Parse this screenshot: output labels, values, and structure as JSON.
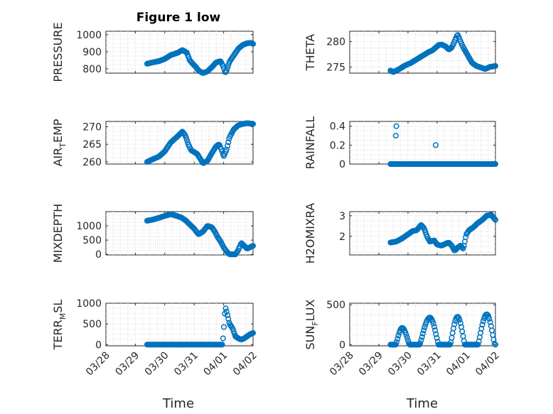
{
  "figure": {
    "title": "Figure 1 low",
    "accent_color": "#0072BD"
  },
  "chart_data": [
    {
      "type": "scatter",
      "id": "pressure",
      "title": "Figure 1 low",
      "ylabel": "PRESSURE",
      "xlabel": "",
      "xlim": [
        "03/28",
        "04/02"
      ],
      "ylim": [
        775,
        1020
      ],
      "yticks": [
        800,
        900,
        1000
      ],
      "ytick_labels": [
        "800",
        "900",
        "1000"
      ],
      "xticks": [
        "03/28",
        "03/29",
        "03/30",
        "03/31",
        "04/01",
        "04/02"
      ],
      "show_xtick_labels": false,
      "key_x": [
        1.4,
        1.6,
        1.8,
        2.0,
        2.2,
        2.45,
        2.6,
        2.75,
        2.85,
        2.95,
        3.05,
        3.15,
        3.3,
        3.45,
        3.6,
        3.75,
        3.9,
        4.0,
        4.05,
        4.1,
        4.2,
        4.35,
        4.5,
        4.65,
        4.8,
        4.95,
        5.0
      ],
      "key_y": [
        830,
        838,
        845,
        858,
        880,
        895,
        910,
        895,
        850,
        830,
        812,
        790,
        775,
        785,
        810,
        838,
        845,
        810,
        775,
        790,
        842,
        880,
        918,
        940,
        950,
        952,
        946
      ],
      "x_range": [
        1.4,
        5.0
      ],
      "spacing": 0.03
    },
    {
      "type": "scatter",
      "id": "theta",
      "title": "",
      "ylabel": "THETA",
      "xlabel": "",
      "xlim": [
        "03/28",
        "04/02"
      ],
      "ylim": [
        273.8,
        282
      ],
      "yticks": [
        275,
        280
      ],
      "ytick_labels": [
        "275",
        "280"
      ],
      "xticks": [
        "03/28",
        "03/29",
        "03/30",
        "03/31",
        "04/01",
        "04/02"
      ],
      "show_xtick_labels": false,
      "key_x": [
        1.4,
        1.5,
        1.7,
        1.9,
        2.1,
        2.3,
        2.5,
        2.7,
        2.85,
        2.95,
        3.05,
        3.15,
        3.3,
        3.4,
        3.5,
        3.6,
        3.7,
        3.8,
        3.9,
        4.0,
        4.1,
        4.2,
        4.35,
        4.5,
        4.65,
        4.8,
        5.0
      ],
      "key_y": [
        274.3,
        274.0,
        274.6,
        275.3,
        275.8,
        276.5,
        277.2,
        277.9,
        278.3,
        278.8,
        279.3,
        279.4,
        279.0,
        278.4,
        278.8,
        280.0,
        281.4,
        280.0,
        278.8,
        277.8,
        276.8,
        275.8,
        275.2,
        274.9,
        274.6,
        275.0,
        275.2
      ],
      "x_range": [
        1.4,
        5.0
      ],
      "spacing": 0.03
    },
    {
      "type": "scatter",
      "id": "air_temp",
      "title": "",
      "ylabel": "AIR_TEMP",
      "ylabel_parts": [
        "AIR",
        "T",
        "EMP"
      ],
      "xlabel": "",
      "xlim": [
        "03/28",
        "04/02"
      ],
      "ylim": [
        259.4,
        271.5
      ],
      "yticks": [
        260,
        265,
        270
      ],
      "ytick_labels": [
        "260",
        "265",
        "270"
      ],
      "xticks": [
        "03/28",
        "03/29",
        "03/30",
        "03/31",
        "04/01",
        "04/02"
      ],
      "show_xtick_labels": false,
      "key_x": [
        1.4,
        1.6,
        1.8,
        2.0,
        2.2,
        2.4,
        2.6,
        2.7,
        2.8,
        2.9,
        3.0,
        3.1,
        3.2,
        3.3,
        3.45,
        3.6,
        3.75,
        3.85,
        3.95,
        4.0,
        4.1,
        4.2,
        4.35,
        4.5,
        4.65,
        4.8,
        5.0
      ],
      "key_y": [
        260.0,
        260.8,
        261.5,
        263.0,
        265.5,
        267.0,
        268.6,
        267.5,
        265.0,
        263.3,
        262.8,
        262.3,
        261.0,
        259.6,
        260.3,
        262.5,
        264.5,
        265.0,
        263.0,
        261.5,
        263.5,
        267.0,
        269.3,
        270.4,
        270.8,
        271.0,
        270.8
      ],
      "x_range": [
        1.4,
        5.0
      ],
      "spacing": 0.03
    },
    {
      "type": "scatter",
      "id": "rainfall",
      "title": "",
      "ylabel": "RAINFALL",
      "xlabel": "",
      "xlim": [
        "03/28",
        "04/02"
      ],
      "ylim": [
        0,
        0.45
      ],
      "yticks": [
        0,
        0.2,
        0.4
      ],
      "ytick_labels": [
        "0",
        "0.2",
        "0.4"
      ],
      "xticks": [
        "03/28",
        "03/29",
        "03/30",
        "03/31",
        "04/01",
        "04/02"
      ],
      "show_xtick_labels": false,
      "key_x": [
        1.4,
        5.0
      ],
      "key_y": [
        0,
        0
      ],
      "x_range": [
        1.4,
        5.0
      ],
      "spacing": 0.03,
      "extra_points": [
        [
          1.6,
          0.4
        ],
        [
          1.58,
          0.3
        ],
        [
          2.95,
          0.2
        ]
      ]
    },
    {
      "type": "scatter",
      "id": "mixdepth",
      "title": "",
      "ylabel": "MIXDEPTH",
      "xlabel": "",
      "xlim": [
        "03/28",
        "04/02"
      ],
      "ylim": [
        -20,
        1500
      ],
      "yticks": [
        0,
        500,
        1000
      ],
      "ytick_labels": [
        "0",
        "500",
        "1000"
      ],
      "xticks": [
        "03/28",
        "03/29",
        "03/30",
        "03/31",
        "04/01",
        "04/02"
      ],
      "show_xtick_labels": false,
      "key_x": [
        1.4,
        1.6,
        1.8,
        2.0,
        2.2,
        2.4,
        2.55,
        2.7,
        2.85,
        3.0,
        3.15,
        3.3,
        3.45,
        3.6,
        3.7,
        3.8,
        3.9,
        4.0,
        4.1,
        4.2,
        4.3,
        4.4,
        4.5,
        4.6,
        4.7,
        4.8,
        5.0
      ],
      "key_y": [
        1180,
        1220,
        1280,
        1350,
        1410,
        1350,
        1300,
        1200,
        1050,
        900,
        700,
        800,
        1000,
        950,
        800,
        600,
        450,
        250,
        100,
        0,
        0,
        0,
        150,
        400,
        300,
        200,
        300
      ],
      "x_range": [
        1.4,
        5.0
      ],
      "spacing": 0.03
    },
    {
      "type": "scatter",
      "id": "h2omixra",
      "title": "",
      "ylabel": "H2OMIXRA",
      "xlabel": "",
      "xlim": [
        "03/28",
        "04/02"
      ],
      "ylim": [
        1.1,
        3.2
      ],
      "yticks": [
        2,
        3
      ],
      "ytick_labels": [
        "2",
        "3"
      ],
      "xticks": [
        "03/28",
        "03/29",
        "03/30",
        "03/31",
        "04/01",
        "04/02"
      ],
      "show_xtick_labels": false,
      "key_x": [
        1.4,
        1.6,
        1.8,
        2.0,
        2.15,
        2.3,
        2.45,
        2.55,
        2.65,
        2.75,
        2.9,
        3.0,
        3.15,
        3.3,
        3.4,
        3.5,
        3.6,
        3.7,
        3.8,
        3.9,
        4.0,
        4.1,
        4.25,
        4.4,
        4.55,
        4.7,
        4.85,
        5.0
      ],
      "key_y": [
        1.7,
        1.75,
        1.9,
        2.1,
        2.25,
        2.3,
        2.55,
        2.4,
        2.0,
        1.75,
        1.8,
        1.6,
        1.55,
        1.65,
        1.7,
        1.55,
        1.3,
        1.45,
        1.55,
        1.4,
        2.1,
        2.3,
        2.45,
        2.65,
        2.8,
        3.0,
        3.05,
        2.8
      ],
      "x_range": [
        1.4,
        5.0
      ],
      "spacing": 0.03
    },
    {
      "type": "scatter",
      "id": "terr_msl",
      "title": "",
      "ylabel": "TERR_MSL",
      "ylabel_parts": [
        "TERR",
        "M",
        "SL"
      ],
      "xlabel": "Time",
      "xlim": [
        "03/28",
        "04/02"
      ],
      "ylim": [
        -30,
        1000
      ],
      "yticks": [
        0,
        500,
        1000
      ],
      "ytick_labels": [
        "0",
        "500",
        "1000"
      ],
      "xticks": [
        "03/28",
        "03/29",
        "03/30",
        "03/31",
        "04/01",
        "04/02"
      ],
      "show_xtick_labels": true,
      "key_x": [
        1.4,
        3.9,
        3.95,
        4.0,
        4.02,
        4.06,
        4.1,
        4.15,
        4.2,
        4.3,
        4.4,
        4.5,
        4.6,
        4.7,
        4.8,
        4.9,
        5.0
      ],
      "key_y": [
        0,
        0,
        0,
        250,
        600,
        900,
        800,
        650,
        500,
        400,
        200,
        150,
        120,
        150,
        200,
        250,
        280
      ],
      "x_range": [
        1.4,
        5.0
      ],
      "spacing": 0.03
    },
    {
      "type": "scatter",
      "id": "sun_flux",
      "title": "",
      "ylabel": "SUN_FLUX",
      "ylabel_parts": [
        "SUN",
        "F",
        "LUX"
      ],
      "xlabel": "Time",
      "xlim": [
        "03/28",
        "04/02"
      ],
      "ylim": [
        -15,
        520
      ],
      "yticks": [
        0,
        500
      ],
      "ytick_labels": [
        "0",
        "500"
      ],
      "xticks": [
        "03/28",
        "03/29",
        "03/30",
        "03/31",
        "04/01",
        "04/02"
      ],
      "show_xtick_labels": true,
      "day_peaks": [
        [
          1.58,
          1.8,
          2.05,
          210
        ],
        [
          2.4,
          2.75,
          3.05,
          340
        ],
        [
          3.45,
          3.7,
          3.95,
          350
        ],
        [
          4.4,
          4.7,
          4.98,
          380
        ]
      ],
      "x_range": [
        1.4,
        5.0
      ],
      "spacing": 0.03
    }
  ]
}
